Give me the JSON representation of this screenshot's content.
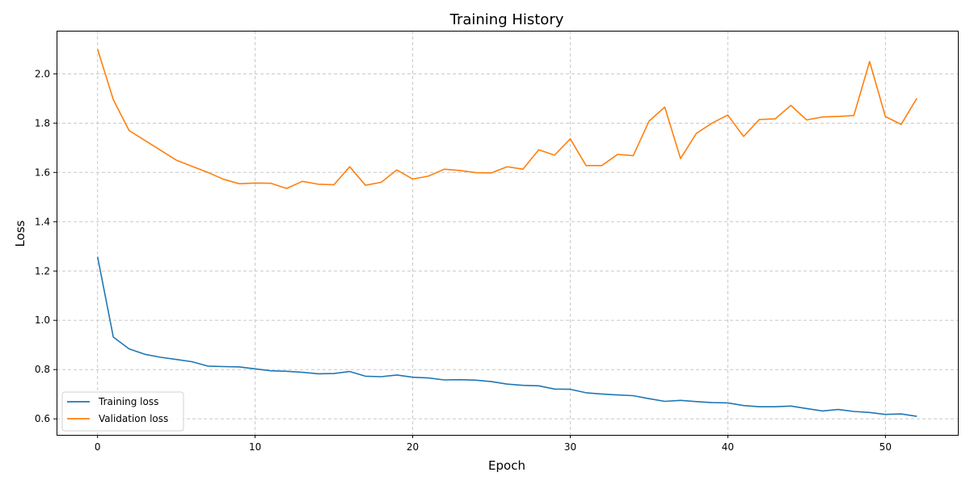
{
  "chart_data": {
    "type": "line",
    "title": "Training History",
    "xlabel": "Epoch",
    "ylabel": "Loss",
    "xlim": [
      -2.6,
      54.6
    ],
    "ylim": [
      0.535,
      2.175
    ],
    "xticks": [
      0,
      10,
      20,
      30,
      40,
      50
    ],
    "yticks": [
      0.6,
      0.8,
      1.0,
      1.2,
      1.4,
      1.6,
      1.8,
      2.0
    ],
    "ytick_labels": [
      "0.6",
      "0.8",
      "1.0",
      "1.2",
      "1.4",
      "1.6",
      "1.8",
      "2.0"
    ],
    "grid": true,
    "legend_position": "lower-left",
    "series": [
      {
        "name": "Training loss",
        "color": "#1f77b4",
        "values": [
          1.258,
          0.932,
          0.884,
          0.862,
          0.85,
          0.841,
          0.832,
          0.814,
          0.812,
          0.811,
          0.803,
          0.795,
          0.793,
          0.789,
          0.783,
          0.784,
          0.792,
          0.773,
          0.771,
          0.778,
          0.769,
          0.766,
          0.758,
          0.759,
          0.757,
          0.751,
          0.741,
          0.736,
          0.734,
          0.721,
          0.72,
          0.706,
          0.701,
          0.697,
          0.694,
          0.682,
          0.671,
          0.675,
          0.67,
          0.666,
          0.665,
          0.654,
          0.649,
          0.649,
          0.652,
          0.642,
          0.632,
          0.638,
          0.63,
          0.626,
          0.618,
          0.62,
          0.61
        ]
      },
      {
        "name": "Validation loss",
        "color": "#ff7f0e",
        "values": [
          2.1,
          1.895,
          1.77,
          1.73,
          1.69,
          1.65,
          1.625,
          1.6,
          1.572,
          1.554,
          1.557,
          1.556,
          1.535,
          1.564,
          1.552,
          1.55,
          1.623,
          1.548,
          1.56,
          1.61,
          1.573,
          1.585,
          1.613,
          1.608,
          1.599,
          1.598,
          1.623,
          1.613,
          1.692,
          1.67,
          1.736,
          1.628,
          1.628,
          1.673,
          1.668,
          1.808,
          1.865,
          1.656,
          1.758,
          1.8,
          1.833,
          1.746,
          1.815,
          1.817,
          1.872,
          1.813,
          1.825,
          1.827,
          1.831,
          2.05,
          1.827,
          1.795,
          1.901
        ]
      }
    ]
  }
}
